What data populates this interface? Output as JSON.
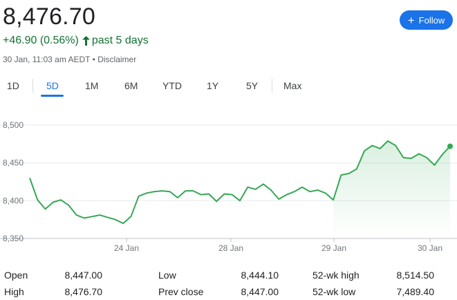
{
  "quote": {
    "price": "8,476.70",
    "change": "+46.90 (0.56%)",
    "period": "past 5 days",
    "timestamp": "30 Jan, 11:03 am AEDT",
    "separator": "•",
    "disclaimer": "Disclaimer",
    "positive_color": "#137333"
  },
  "follow_button": {
    "label": "Follow",
    "icon": "plus-icon",
    "color": "#1a73e8"
  },
  "tabs": [
    {
      "label": "1D",
      "active": false
    },
    {
      "label": "5D",
      "active": true
    },
    {
      "label": "1M",
      "active": false
    },
    {
      "label": "6M",
      "active": false
    },
    {
      "label": "YTD",
      "active": false
    },
    {
      "label": "1Y",
      "active": false
    },
    {
      "label": "5Y",
      "active": false
    },
    {
      "label": "Max",
      "active": false
    }
  ],
  "stats": [
    {
      "label": "Open",
      "value": "8,447.00"
    },
    {
      "label": "Low",
      "value": "8,444.10"
    },
    {
      "label": "52-wk high",
      "value": "8,514.50"
    },
    {
      "label": "High",
      "value": "8,476.70"
    },
    {
      "label": "Prev close",
      "value": "8,447.00"
    },
    {
      "label": "52-wk low",
      "value": "7,489.40"
    }
  ],
  "chart_data": {
    "type": "line",
    "title": "",
    "xlabel": "",
    "ylabel": "",
    "ylim": [
      8350,
      8500
    ],
    "y_ticks": [
      "8,500",
      "8,450",
      "8,400",
      "8,350"
    ],
    "x_ticks": [
      "24 Jan",
      "28 Jan",
      "29 Jan",
      "30 Jan"
    ],
    "grid": true,
    "line_color": "#34a853",
    "series": [
      {
        "values": [
          8430,
          8401,
          8389,
          8398,
          8401,
          8394,
          8381,
          8377,
          8379,
          8381,
          8378,
          8375,
          8370,
          8379,
          8406,
          8410,
          8412,
          8413,
          8412,
          8404,
          8413,
          8413,
          8408,
          8409,
          8399,
          8409,
          8408,
          8400,
          8418,
          8415,
          8422,
          8414,
          8402,
          8408,
          8412,
          8418,
          8412,
          8414,
          8410,
          8401,
          8434,
          8436,
          8442,
          8466,
          8473,
          8469,
          8479,
          8473,
          8457,
          8456,
          8462,
          8457,
          8447,
          8461,
          8472
        ]
      }
    ]
  }
}
